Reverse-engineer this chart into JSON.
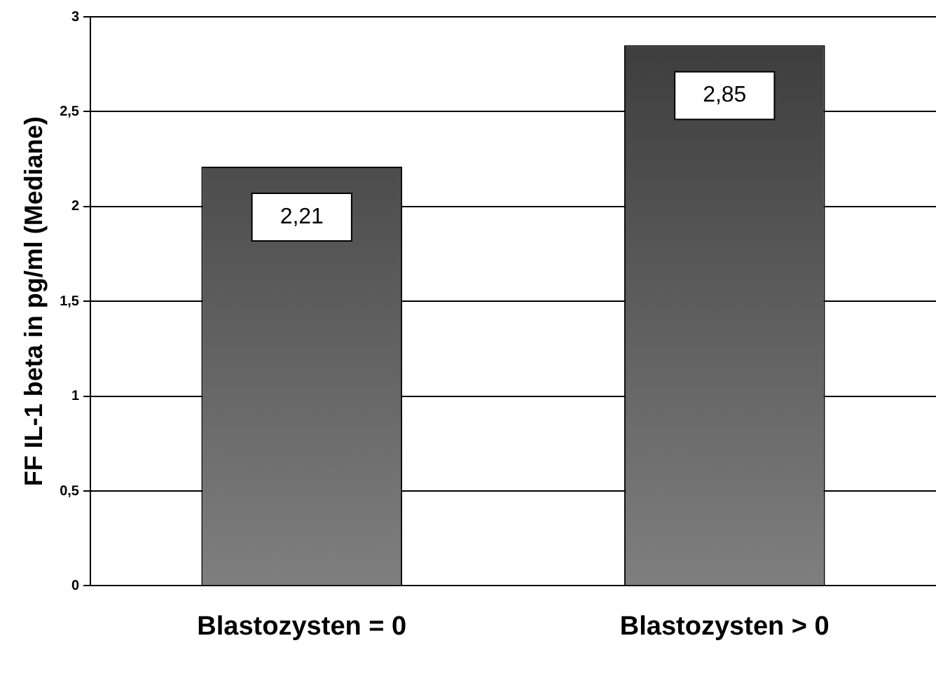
{
  "chart_data": {
    "type": "bar",
    "ylabel": "FF IL-1 beta in pg/ml (Mediane)",
    "categories": [
      "Blastozysten = 0",
      "Blastozysten > 0"
    ],
    "values": [
      2.21,
      2.85
    ],
    "value_labels": [
      "2,21",
      "2,85"
    ],
    "color": "#3a3a3a",
    "ylim": [
      0,
      3
    ],
    "yticks": [
      0,
      {
        "value": 0.5,
        "label": "0,5"
      },
      1,
      {
        "value": 1.5,
        "label": "1,5"
      },
      2,
      {
        "value": 2.5,
        "label": "2,5"
      },
      3
    ],
    "grid": "y",
    "legend": false
  }
}
